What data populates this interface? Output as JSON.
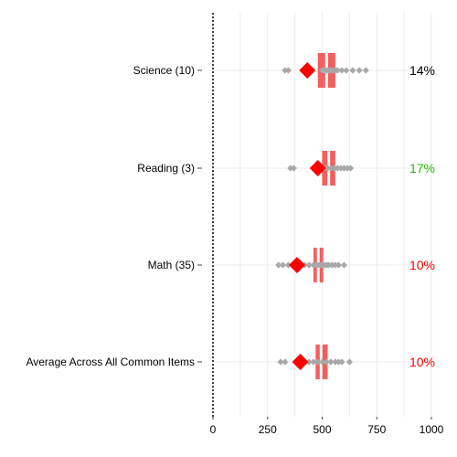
{
  "chart_data": {
    "type": "scatter",
    "title": "",
    "xlabel": "",
    "ylabel": "",
    "xlim": [
      0,
      1000
    ],
    "xticks": [
      0,
      250,
      500,
      750,
      1000
    ],
    "grid": true,
    "rows": [
      {
        "label": "Science (10)",
        "box": [
          480,
          520,
          560
        ],
        "mean": 432,
        "points": [
          330,
          345,
          500,
          510,
          520,
          530,
          540,
          550,
          560,
          570,
          590,
          610,
          640,
          670,
          700
        ],
        "percent": "14%",
        "percent_color": "#000000"
      },
      {
        "label": "Reading (3)",
        "box": [
          500,
          530,
          560
        ],
        "mean": 480,
        "points": [
          355,
          370,
          500,
          510,
          525,
          540,
          555,
          570,
          585,
          600,
          615,
          630
        ],
        "percent": "17%",
        "percent_color": "#22bb00"
      },
      {
        "label": "Math (35)",
        "box": [
          460,
          482,
          505
        ],
        "mean": 385,
        "points": [
          300,
          320,
          345,
          400,
          420,
          440,
          460,
          470,
          480,
          490,
          500,
          510,
          520,
          530,
          545,
          560,
          575,
          600
        ],
        "percent": "10%",
        "percent_color": "#ff0000"
      },
      {
        "label": "Average Across All Common Items",
        "box": [
          470,
          495,
          525
        ],
        "mean": 400,
        "points": [
          310,
          330,
          420,
          440,
          460,
          480,
          500,
          520,
          540,
          560,
          575,
          590,
          625
        ],
        "percent": "10%",
        "percent_color": "#ff0000"
      }
    ]
  },
  "colors": {
    "box": "#f25f5f",
    "mean": "#ff0000",
    "points": "#a8a8a8",
    "grid": "#ececec",
    "zero_line": "#000000"
  }
}
